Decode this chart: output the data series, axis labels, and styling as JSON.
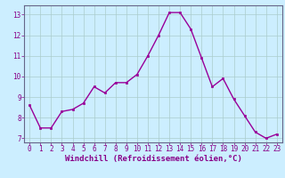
{
  "x": [
    0,
    1,
    2,
    3,
    4,
    5,
    6,
    7,
    8,
    9,
    10,
    11,
    12,
    13,
    14,
    15,
    16,
    17,
    18,
    19,
    20,
    21,
    22,
    23
  ],
  "y": [
    8.6,
    7.5,
    7.5,
    8.3,
    8.4,
    8.7,
    9.5,
    9.2,
    9.7,
    9.7,
    10.1,
    11.0,
    12.0,
    13.1,
    13.1,
    12.3,
    10.9,
    9.5,
    9.9,
    8.9,
    8.1,
    7.3,
    7.0,
    7.2
  ],
  "line_color": "#990099",
  "marker_color": "#990099",
  "bg_color": "#cceeff",
  "grid_color": "#aacccc",
  "xlabel": "Windchill (Refroidissement éolien,°C)",
  "ylabel": "",
  "xlim": [
    -0.5,
    23.5
  ],
  "ylim": [
    6.8,
    13.45
  ],
  "yticks": [
    7,
    8,
    9,
    10,
    11,
    12,
    13
  ],
  "xticks": [
    0,
    1,
    2,
    3,
    4,
    5,
    6,
    7,
    8,
    9,
    10,
    11,
    12,
    13,
    14,
    15,
    16,
    17,
    18,
    19,
    20,
    21,
    22,
    23
  ],
  "xlabel_color": "#880088",
  "tick_color": "#880088",
  "spine_color": "#666688",
  "label_fontsize": 6.5,
  "tick_fontsize": 5.5,
  "linewidth": 1.0,
  "markersize": 2.0
}
